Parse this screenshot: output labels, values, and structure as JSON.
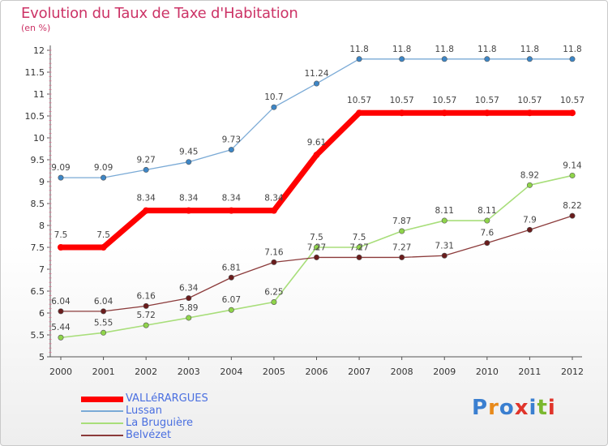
{
  "title": "Evolution du Taux de Taxe d'Habitation",
  "unit": "(en %)",
  "logo": {
    "text": "Proxiti",
    "colors": [
      "#3a7fd0",
      "#e88a1a",
      "#3a7fd0",
      "#e0342a",
      "#3a7fd0",
      "#7ab82e",
      "#e0342a"
    ]
  },
  "chart_data": {
    "type": "line",
    "x": [
      "2000",
      "2001",
      "2002",
      "2003",
      "2004",
      "2005",
      "2006",
      "2007",
      "2008",
      "2009",
      "2010",
      "2011",
      "2012"
    ],
    "ylim": [
      5,
      12
    ],
    "yticks": [
      "5",
      "5.5",
      "6",
      "6.5",
      "7",
      "7.5",
      "8",
      "8.5",
      "9",
      "9.5",
      "10",
      "10.5",
      "11",
      "11.5",
      "12"
    ],
    "grid": false,
    "legend_position": "bottom-left",
    "series": [
      {
        "name": "VALLéRARGUES",
        "color": "#ff0000",
        "width": 7,
        "values": [
          7.5,
          7.5,
          8.34,
          8.34,
          8.34,
          8.34,
          9.61,
          10.57,
          10.57,
          10.57,
          10.57,
          10.57,
          10.57
        ],
        "labels": [
          "7.5",
          "7.5",
          "8.34",
          "8.34",
          "8.34",
          "8.34",
          "9.61",
          "10.57",
          "10.57",
          "10.57",
          "10.57",
          "10.57",
          "10.57"
        ]
      },
      {
        "name": "Lussan",
        "color": "#7aaad6",
        "width": 1.3,
        "values": [
          9.09,
          9.09,
          9.27,
          9.45,
          9.73,
          10.7,
          11.24,
          11.8,
          11.8,
          11.8,
          11.8,
          11.8,
          11.8
        ],
        "labels": [
          "9.09",
          "9.09",
          "9.27",
          "9.45",
          "9.73",
          "10.7",
          "11.24",
          "11.8",
          "11.8",
          "11.8",
          "11.8",
          "11.8",
          "11.8"
        ]
      },
      {
        "name": "La Bruguière",
        "color": "#a8de7a",
        "width": 1.6,
        "values": [
          5.44,
          5.55,
          5.72,
          5.89,
          6.07,
          6.25,
          7.5,
          7.5,
          7.87,
          8.11,
          8.11,
          8.92,
          9.14
        ],
        "labels": [
          "5.44",
          "5.55",
          "5.72",
          "5.89",
          "6.07",
          "6.25",
          "7.5",
          "7.5",
          "7.87",
          "8.11",
          "8.11",
          "8.92",
          "9.14"
        ]
      },
      {
        "name": "Belvézet",
        "color": "#8b3a3a",
        "width": 1.3,
        "values": [
          6.04,
          6.04,
          6.16,
          6.34,
          6.81,
          7.16,
          7.27,
          7.27,
          7.27,
          7.31,
          7.6,
          7.9,
          8.22
        ],
        "labels": [
          "6.04",
          "6.04",
          "6.16",
          "6.34",
          "6.81",
          "7.16",
          "7.27",
          "7.27",
          "7.27",
          "7.31",
          "7.6",
          "7.9",
          "8.22"
        ]
      }
    ]
  }
}
